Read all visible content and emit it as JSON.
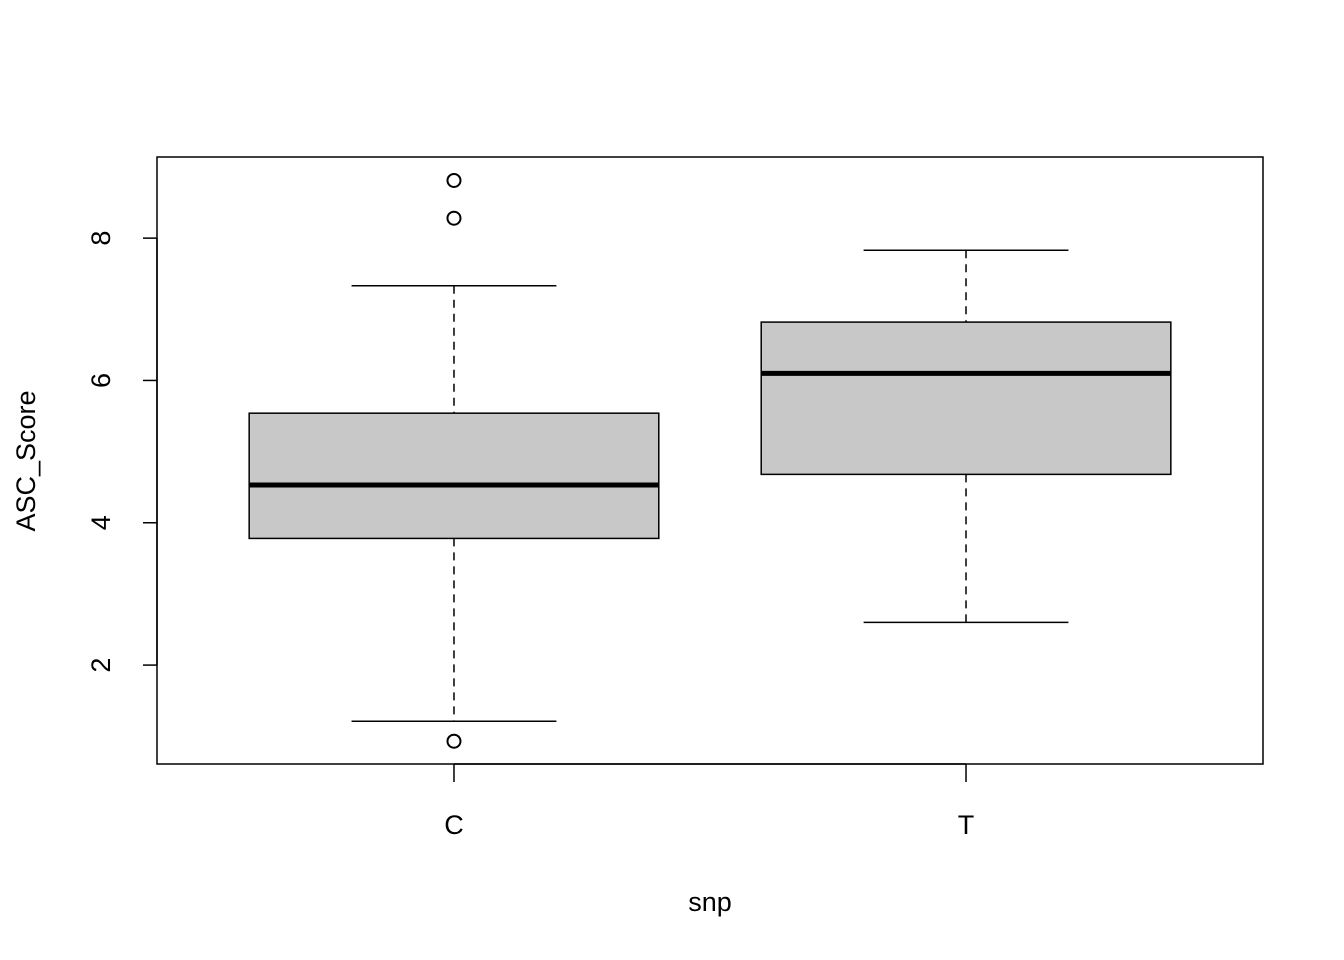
{
  "chart_data": {
    "type": "boxplot",
    "title": "",
    "xlabel": "snp",
    "ylabel": "ASC_Score",
    "categories": [
      "C",
      "T"
    ],
    "yticks": [
      2,
      4,
      6,
      8
    ],
    "ylim": [
      0.61,
      9.14
    ],
    "grid": false,
    "box_fill": "#c8c8c8",
    "series": [
      {
        "category": "C",
        "lower_whisker": 1.21,
        "q1": 3.78,
        "median": 4.53,
        "q3": 5.54,
        "upper_whisker": 7.33,
        "outliers": [
          8.81,
          8.28,
          0.93
        ]
      },
      {
        "category": "T",
        "lower_whisker": 2.6,
        "q1": 4.68,
        "median": 6.1,
        "q3": 6.82,
        "upper_whisker": 7.83,
        "outliers": []
      }
    ]
  }
}
